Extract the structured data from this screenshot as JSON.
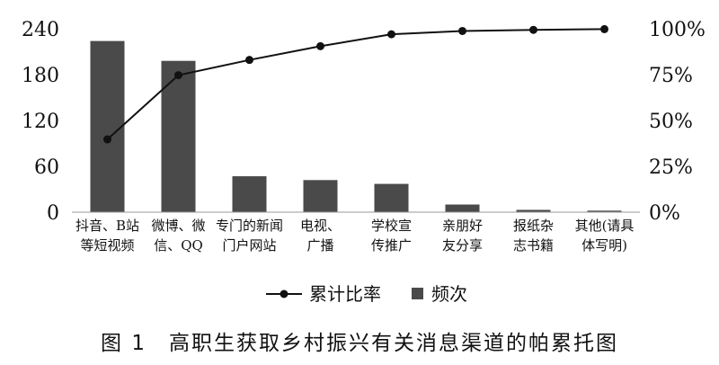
{
  "chart_data": {
    "type": "bar",
    "categories": [
      [
        "抖音、B站",
        "等短视频"
      ],
      [
        "微博、微",
        "信、QQ"
      ],
      [
        "专门的新闻",
        "门户网站"
      ],
      [
        "电视、",
        "广播"
      ],
      [
        "学校宣",
        "传推广"
      ],
      [
        "亲朋好",
        "友分享"
      ],
      [
        "报纸杂",
        "志书籍"
      ],
      [
        "其他(请具",
        "体写明)"
      ]
    ],
    "series": [
      {
        "name": "频次",
        "type": "bar",
        "axis": "left",
        "values": [
          224,
          198,
          47,
          42,
          37,
          10,
          3,
          2
        ],
        "color": "#4a4a4a"
      },
      {
        "name": "累计比率",
        "type": "line",
        "axis": "right",
        "values": [
          39.7,
          74.7,
          83.0,
          90.5,
          97.0,
          98.8,
          99.4,
          99.8
        ],
        "color": "#111111"
      }
    ],
    "y_left": {
      "ticks": [
        0,
        60,
        120,
        180,
        240
      ],
      "lim": [
        0,
        240
      ]
    },
    "y_right": {
      "ticks": [
        "0%",
        "25%",
        "50%",
        "75%",
        "100%"
      ],
      "lim": [
        0,
        100
      ]
    },
    "legend_position": "bottom",
    "grid": false
  },
  "caption": "图 1　高职生获取乡村振兴有关消息渠道的帕累托图"
}
